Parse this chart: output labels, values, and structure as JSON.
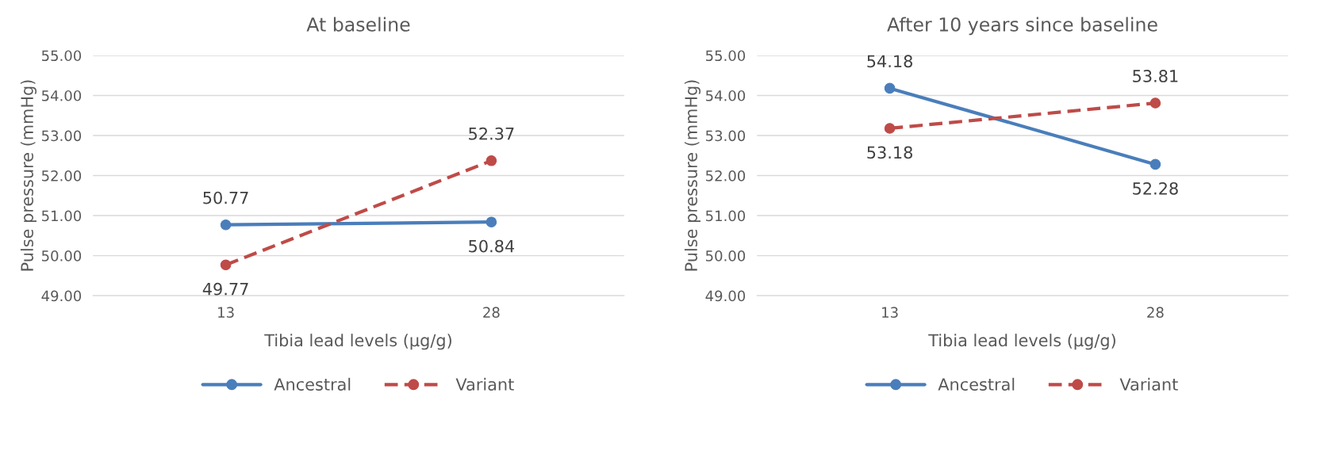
{
  "chart_data": [
    {
      "type": "line",
      "title": "At baseline",
      "xlabel": "Tibia lead levels (µg/g)",
      "ylabel": "Pulse pressure (mmHg)",
      "categories": [
        "13",
        "28"
      ],
      "series": [
        {
          "name": "Ancestral",
          "color": "#4a7ebb",
          "values": [
            50.77,
            50.84
          ],
          "line_style": "solid"
        },
        {
          "name": "Variant",
          "color": "#be4b48",
          "values": [
            49.77,
            52.37
          ],
          "line_style": "dashed"
        }
      ],
      "ylim": [
        49,
        55
      ],
      "yticks": [
        {
          "value": 49,
          "label": "49.00"
        },
        {
          "value": 50,
          "label": "50.00"
        },
        {
          "value": 51,
          "label": "51.00"
        },
        {
          "value": 52,
          "label": "52.00"
        },
        {
          "value": 53,
          "label": "53.00"
        },
        {
          "value": 54,
          "label": "54.00"
        },
        {
          "value": 55,
          "label": "55.00"
        }
      ],
      "grid": "y",
      "legend": "bottom",
      "marker": "circle",
      "data_labels": true
    },
    {
      "type": "line",
      "title": "After 10 years since baseline",
      "xlabel": "Tibia lead levels (µg/g)",
      "ylabel": "Pulse pressure (mmHg)",
      "categories": [
        "13",
        "28"
      ],
      "series": [
        {
          "name": "Ancestral",
          "color": "#4a7ebb",
          "values": [
            54.18,
            52.28
          ],
          "line_style": "solid"
        },
        {
          "name": "Variant",
          "color": "#be4b48",
          "values": [
            53.18,
            53.81
          ],
          "line_style": "dashed"
        }
      ],
      "ylim": [
        49,
        55
      ],
      "yticks": [
        {
          "value": 49,
          "label": "49.00"
        },
        {
          "value": 50,
          "label": "50.00"
        },
        {
          "value": 51,
          "label": "51.00"
        },
        {
          "value": 52,
          "label": "52.00"
        },
        {
          "value": 53,
          "label": "53.00"
        },
        {
          "value": 54,
          "label": "54.00"
        },
        {
          "value": 55,
          "label": "55.00"
        }
      ],
      "grid": "y",
      "legend": "bottom",
      "marker": "circle",
      "data_labels": true
    }
  ]
}
